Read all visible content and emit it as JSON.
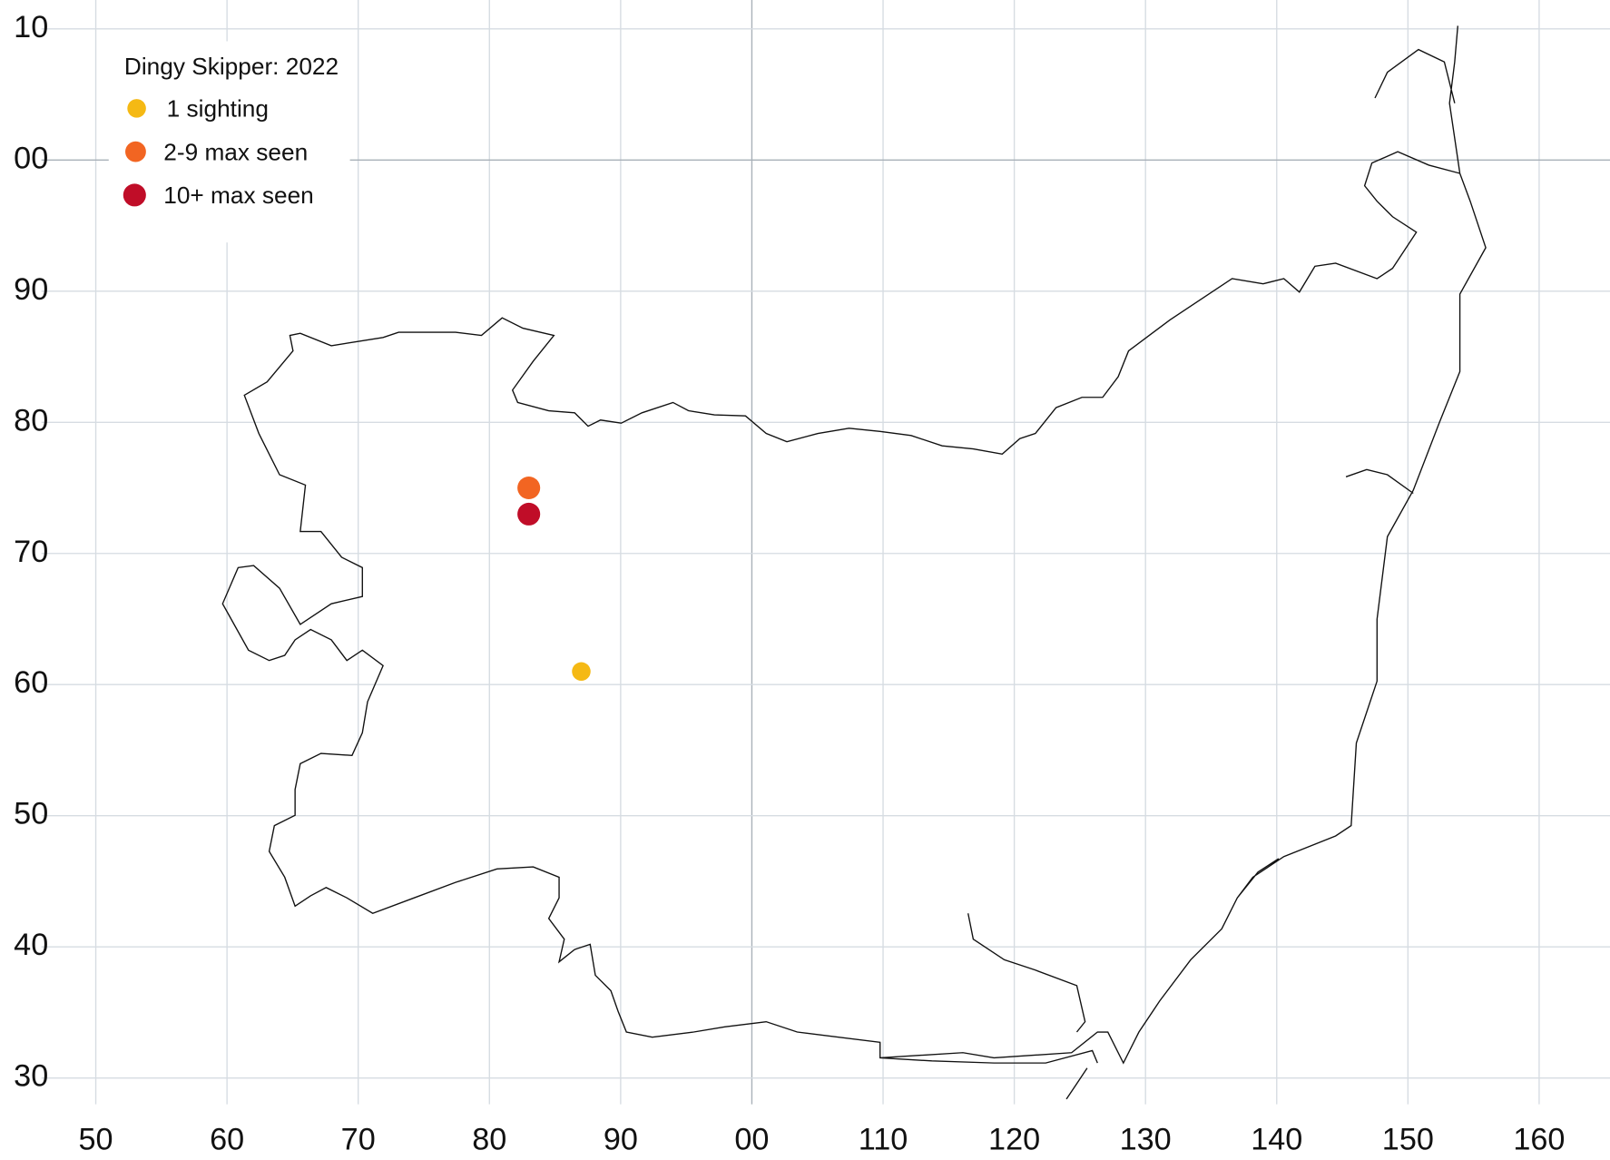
{
  "chart_data": {
    "type": "scatter",
    "title": "Dingy Skipper:  2022",
    "series": [
      {
        "name": "1 sighting",
        "color": "#f5b914",
        "x": [
          87
        ],
        "values": [
          61
        ]
      },
      {
        "name": "2-9 max seen",
        "color": "#f26522",
        "x": [
          83
        ],
        "values": [
          75
        ]
      },
      {
        "name": "10+ max seen",
        "color": "#c00d28",
        "x": [
          83
        ],
        "values": [
          73
        ]
      }
    ],
    "xlim": [
      42.7,
      165.4
    ],
    "ylim": [
      28,
      112.2
    ],
    "xticks": [
      50,
      60,
      70,
      80,
      90,
      {
        "value": 100,
        "label": "00"
      },
      110,
      120,
      130,
      140,
      150,
      160
    ],
    "yticks": [
      30,
      40,
      50,
      60,
      70,
      80,
      90,
      {
        "value": 100,
        "label": "00"
      },
      {
        "value": 110,
        "label": "10"
      }
    ],
    "grid": true
  }
}
